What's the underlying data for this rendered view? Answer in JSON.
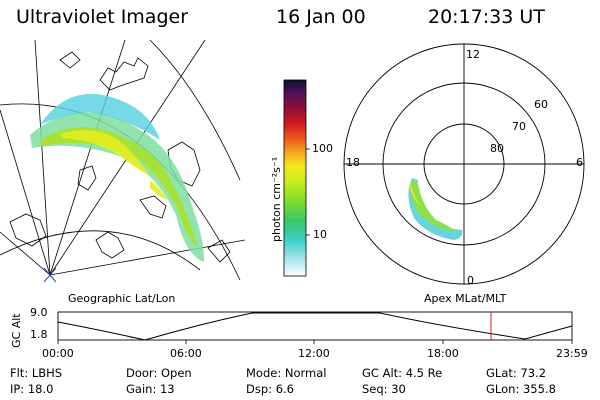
{
  "header": {
    "title": "Ultraviolet Imager",
    "date": "16 Jan 00",
    "time": "20:17:33 UT"
  },
  "colorbar": {
    "unit_label": "photon cm⁻²s⁻¹",
    "tick_100": "100",
    "tick_10": "10"
  },
  "polar": {
    "labels": {
      "top": "12",
      "left": "18",
      "right": "6",
      "bottom": "0"
    },
    "lat_rings": [
      "60",
      "70",
      "80"
    ]
  },
  "map_labels": {
    "left_panel": "Geographic Lat/Lon",
    "right_panel": "Apex MLat/MLT"
  },
  "altitude_plot": {
    "ylabel": "GC Alt",
    "yticks": [
      "9.0",
      "1.8"
    ],
    "xticks": [
      "00:00",
      "06:00",
      "12:00",
      "18:00",
      "23:59"
    ],
    "marker_color": "#e0141e"
  },
  "info": {
    "row1": [
      {
        "key": "Flt:",
        "val": "LBHS"
      },
      {
        "key": "Door:",
        "val": "Open"
      },
      {
        "key": "Mode:",
        "val": "Normal"
      },
      {
        "key": "GC Alt:",
        "val": "4.5 Re"
      },
      {
        "key": "GLat:",
        "val": "73.2"
      }
    ],
    "row2": [
      {
        "key": "IP:",
        "val": "18.0"
      },
      {
        "key": "Gain:",
        "val": "13"
      },
      {
        "key": "Dsp:",
        "val": "6.6"
      },
      {
        "key": "Seq:",
        "val": "30"
      },
      {
        "key": "GLon:",
        "val": "355.8"
      }
    ]
  }
}
